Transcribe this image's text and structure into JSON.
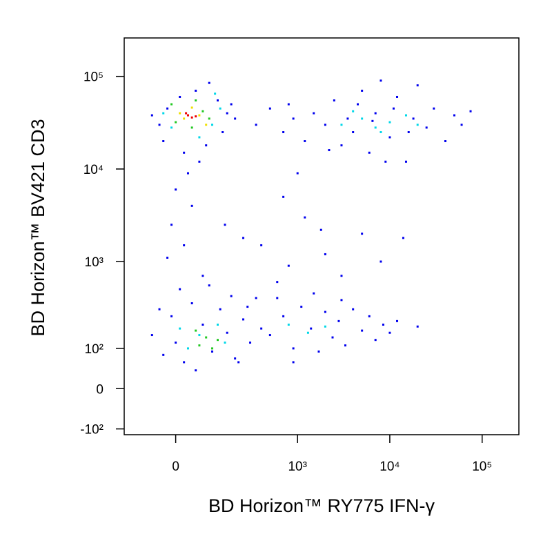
{
  "chart_data": {
    "type": "scatter",
    "x_label": "BD Horizon™ RY775 IFN-γ",
    "y_label": "BD Horizon™ BV421 CD3",
    "scale": "biexponential",
    "xlim": [
      -160,
      250000
    ],
    "ylim": [
      -120,
      260000
    ],
    "xticks": [
      0,
      {
        "value": 1000,
        "label": "10³"
      },
      {
        "value": 10000,
        "label": "10⁴"
      },
      {
        "value": 100000,
        "label": "10⁵"
      }
    ],
    "yticks": [
      {
        "value": -100,
        "label": "-10²"
      },
      0,
      {
        "value": 100,
        "label": "10²"
      },
      {
        "value": 1000,
        "label": "10³"
      },
      {
        "value": 10000,
        "label": "10⁴"
      },
      {
        "value": 100000,
        "label": "10⁵"
      }
    ],
    "series": [
      {
        "color": "#0000ee",
        "x": [
          -40,
          -20,
          10,
          50,
          120,
          160,
          140,
          80,
          20,
          -30,
          -60,
          90,
          200,
          180,
          60,
          30,
          0,
          40,
          -10,
          20,
          70,
          -20,
          350,
          500,
          700,
          900,
          1200,
          1500,
          2000,
          2500,
          3000,
          4000,
          5000,
          6000,
          7000,
          8000,
          10000,
          12000,
          15000,
          18000,
          20000,
          25000,
          30000,
          40000,
          50000,
          60000,
          75000,
          4500,
          3500,
          9000,
          2200,
          800,
          11000,
          16000,
          6500,
          1000,
          700,
          150,
          400,
          800,
          1200,
          2000,
          3000,
          5000,
          8000,
          14000,
          600,
          250,
          1800,
          -60,
          -30,
          -10,
          0,
          20,
          40,
          70,
          100,
          130,
          160,
          200,
          250,
          300,
          350,
          400,
          -40,
          10,
          50,
          180,
          90,
          280,
          220,
          500,
          700,
          900,
          1100,
          1400,
          1700,
          2000,
          2400,
          2800,
          3300,
          4000,
          5000,
          6000,
          7000,
          8500,
          10000,
          12000,
          20000,
          600,
          1500,
          3000,
          900
        ],
        "values": [
          30000,
          45000,
          60000,
          70000,
          55000,
          40000,
          25000,
          18000,
          15000,
          20000,
          38000,
          85000,
          35000,
          50000,
          12000,
          9000,
          6000,
          4000,
          2500,
          1500,
          700,
          1100,
          30000,
          45000,
          25000,
          35000,
          20000,
          40000,
          30000,
          55000,
          18000,
          25000,
          70000,
          15000,
          40000,
          90000,
          22000,
          60000,
          12000,
          35000,
          80000,
          28000,
          45000,
          20000,
          38000,
          30000,
          42000,
          50000,
          35000,
          12000,
          16000,
          50000,
          45000,
          25000,
          33000,
          9000,
          5000,
          2500,
          1500,
          900,
          3000,
          1200,
          700,
          2000,
          1000,
          1800,
          600,
          1800,
          2200,
          150,
          80,
          250,
          120,
          60,
          350,
          200,
          90,
          300,
          160,
          70,
          230,
          120,
          400,
          180,
          300,
          500,
          40,
          420,
          550,
          320,
          60,
          150,
          250,
          100,
          320,
          180,
          90,
          280,
          140,
          220,
          110,
          300,
          170,
          250,
          130,
          200,
          160,
          220,
          190,
          400,
          450,
          380,
          60
        ]
      },
      {
        "color": "#00d8e8",
        "x": [
          -10,
          100,
          130,
          -30,
          60,
          110,
          3000,
          5000,
          7000,
          10000,
          15000,
          20000,
          4000,
          8000,
          30,
          60,
          120,
          150,
          10,
          800,
          2000,
          1300
        ],
        "values": [
          28000,
          30000,
          45000,
          40000,
          22000,
          65000,
          30000,
          35000,
          28000,
          32000,
          38000,
          30000,
          42000,
          25000,
          100,
          150,
          200,
          120,
          180,
          200,
          190,
          160
        ]
      },
      {
        "color": "#22c822",
        "x": [
          0,
          70,
          40,
          90,
          -10,
          50,
          60,
          80,
          100,
          50,
          120
        ],
        "values": [
          32000,
          42000,
          28000,
          35000,
          50000,
          55000,
          110,
          140,
          100,
          170,
          130
        ]
      },
      {
        "color": "#f0e000",
        "x": [
          20,
          60,
          40,
          10,
          80
        ],
        "values": [
          35000,
          38000,
          46000,
          40000,
          30000
        ]
      },
      {
        "color": "#ee0000",
        "x": [
          30,
          40,
          25,
          50
        ],
        "values": [
          38000,
          36000,
          40000,
          37000
        ]
      }
    ]
  }
}
